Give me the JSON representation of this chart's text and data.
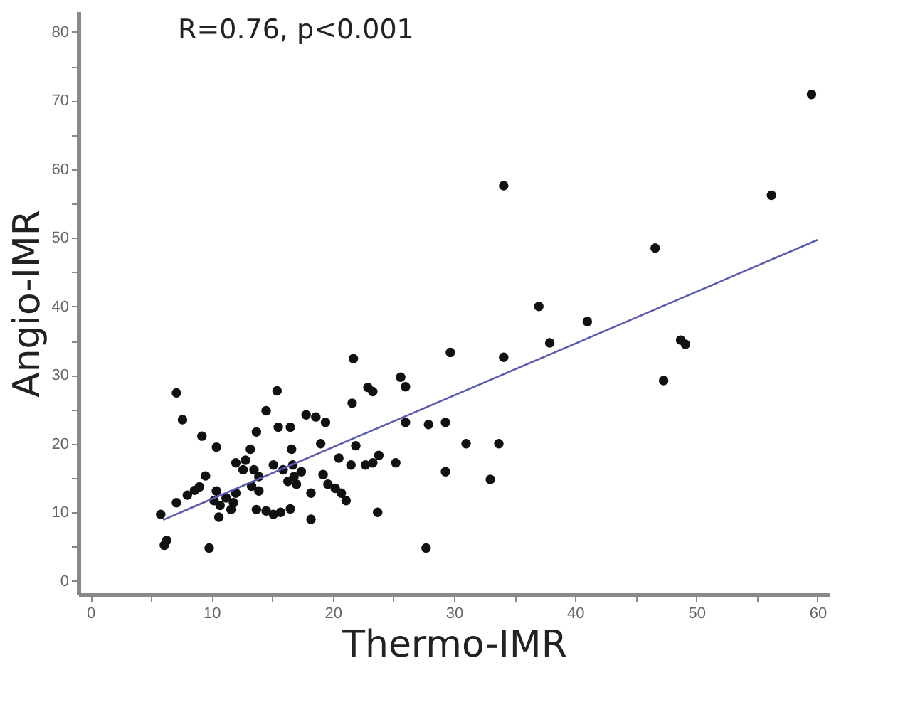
{
  "chart_data": {
    "type": "scatter",
    "xlabel": "Thermo-IMR",
    "ylabel": "Angio-IMR",
    "annotations": [
      "R=0.76, p<0.001"
    ],
    "xlim": [
      -1,
      61
    ],
    "ylim": [
      -2,
      83
    ],
    "xticks": [
      0,
      {
        "value": 5,
        "label": null
      },
      10,
      {
        "value": 15,
        "label": null
      },
      20,
      {
        "value": 25,
        "label": null
      },
      30,
      {
        "value": 35,
        "label": null
      },
      40,
      {
        "value": 45,
        "label": null
      },
      50,
      {
        "value": 55,
        "label": null
      },
      60
    ],
    "yticks": [
      0,
      {
        "value": 5,
        "label": null
      },
      10,
      {
        "value": 15,
        "label": null
      },
      20,
      {
        "value": 25,
        "label": null
      },
      30,
      {
        "value": 35,
        "label": null
      },
      40,
      {
        "value": 45,
        "label": null
      },
      50,
      {
        "value": 55,
        "label": null
      },
      60,
      {
        "value": 65,
        "label": null
      },
      70,
      {
        "value": 75,
        "label": null
      },
      80
    ],
    "grid": false,
    "series": [
      {
        "marker": "circle",
        "color": "#111111",
        "x": [
          7.1,
          7.6,
          5.8,
          6.3,
          6.1,
          9.8,
          9.2,
          10.4,
          9.5,
          8.0,
          8.6,
          9.0,
          7.1,
          10.4,
          10.2,
          10.7,
          10.6,
          11.6,
          11.8,
          11.2,
          12.0,
          13.7,
          14.5,
          15.4,
          13.2,
          12.8,
          12.0,
          12.6,
          13.5,
          13.9,
          13.3,
          13.9,
          15.5,
          16.5,
          15.1,
          15.9,
          16.7,
          16.8,
          17.4,
          16.3,
          17.0,
          16.6,
          13.7,
          14.5,
          15.1,
          15.7,
          16.5,
          18.2,
          18.2,
          17.8,
          18.6,
          19.4,
          19.0,
          19.2,
          19.6,
          20.2,
          20.7,
          21.1,
          20.5,
          21.7,
          21.6,
          21.9,
          21.5,
          22.9,
          23.3,
          22.7,
          23.3,
          23.8,
          23.7,
          25.2,
          25.6,
          26.0,
          26.0,
          27.7,
          27.9,
          29.3,
          29.3,
          29.7,
          31.0,
          33.7,
          33.0,
          34.1,
          37.0,
          37.9,
          41.0,
          47.3,
          48.7,
          49.1,
          34.1,
          59.5,
          56.2,
          46.6
        ],
        "values": [
          27.4,
          23.5,
          9.7,
          5.9,
          5.2,
          4.8,
          21.1,
          19.5,
          15.3,
          12.5,
          13.2,
          13.7,
          11.4,
          13.1,
          11.7,
          11.0,
          9.3,
          10.4,
          11.4,
          12.1,
          12.8,
          21.7,
          24.8,
          27.7,
          19.2,
          17.6,
          17.2,
          16.2,
          16.2,
          15.2,
          13.8,
          13.1,
          22.4,
          22.4,
          16.9,
          16.2,
          16.9,
          15.2,
          15.9,
          14.5,
          14.1,
          19.2,
          10.4,
          10.2,
          9.7,
          10.0,
          10.5,
          9.0,
          12.8,
          24.2,
          23.9,
          23.1,
          20.0,
          15.5,
          14.1,
          13.5,
          12.8,
          11.7,
          17.9,
          32.4,
          25.9,
          19.7,
          16.9,
          28.2,
          27.6,
          16.9,
          17.2,
          18.3,
          10.0,
          17.2,
          29.7,
          28.3,
          23.1,
          4.8,
          22.8,
          23.1,
          15.9,
          33.3,
          20.0,
          20.0,
          14.8,
          32.6,
          40.0,
          34.7,
          37.8,
          29.2,
          35.1,
          34.5,
          57.6,
          70.9,
          56.2,
          48.5
        ]
      },
      {
        "type": "line",
        "color": "#5b5bb0",
        "x": [
          6,
          60
        ],
        "values": [
          8.9,
          49.7
        ]
      }
    ]
  }
}
